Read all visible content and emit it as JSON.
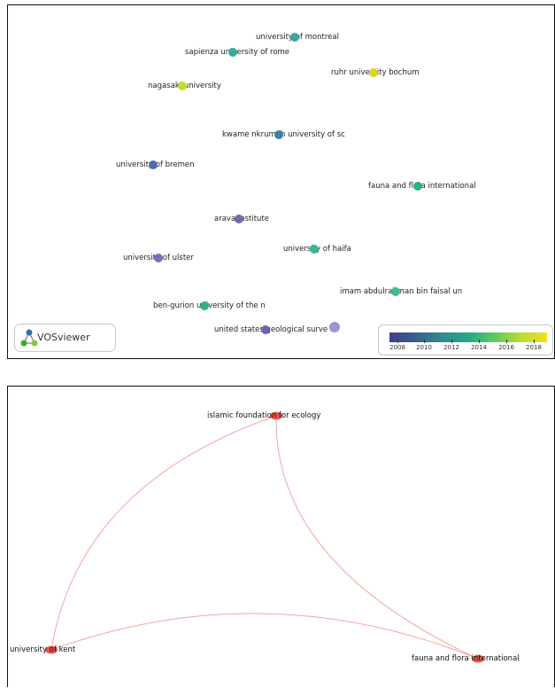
{
  "top_map": {
    "logo_text": "VOSviewer",
    "nodes": [
      {
        "label": "university of montreal",
        "color": "#3ba79e"
      },
      {
        "label": "sapienza university of rome",
        "color": "#38a89b"
      },
      {
        "label": "ruhr university bochum",
        "color": "#d9d71a"
      },
      {
        "label": "nagasaki university",
        "color": "#c8dc2a"
      },
      {
        "label": "kwame nkrumah university of sc",
        "color": "#3e7fa2"
      },
      {
        "label": "university of bremen",
        "color": "#4a6fae"
      },
      {
        "label": "fauna and flora international",
        "color": "#2bb07f"
      },
      {
        "label": "arava institute",
        "color": "#6e6aae"
      },
      {
        "label": "university of ulster",
        "color": "#7b6fba"
      },
      {
        "label": "university of haifa",
        "color": "#3eb49a"
      },
      {
        "label": "imam abdulrahman bin faisal un",
        "color": "#42b99a"
      },
      {
        "label": "ben-gurion university of the n",
        "color": "#2fae8c"
      },
      {
        "label": "united states geological surve",
        "color": "#6b67ad"
      },
      {
        "label": "",
        "color": "#9a96cf"
      }
    ],
    "legend": {
      "ticks": [
        "2008",
        "2010",
        "2012",
        "2014",
        "2016",
        "2018"
      ]
    }
  },
  "bottom_map": {
    "nodes": [
      {
        "label": "islamic foundation for ecology",
        "color": "#e8534f"
      },
      {
        "label": "university of kent",
        "color": "#e8534f"
      },
      {
        "label": "fauna and flora international",
        "color": "#e8534f"
      }
    ],
    "edge_color": "#f5a59e"
  }
}
